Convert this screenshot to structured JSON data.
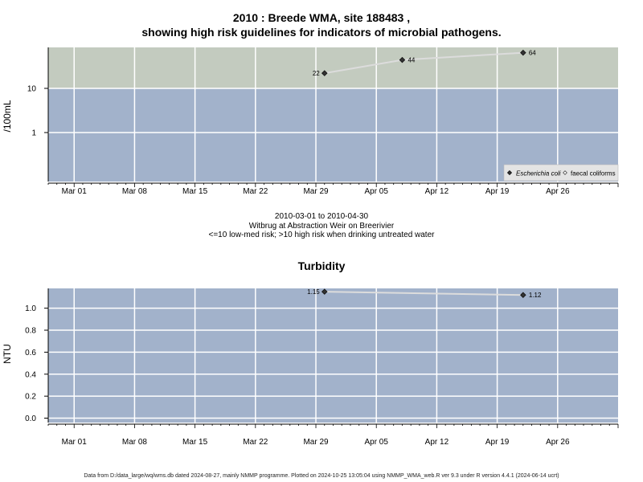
{
  "chart_data": [
    {
      "type": "line",
      "title_line1": "2010 : Breede WMA, site 188483 ,",
      "title_line2": "showing high risk guidelines for indicators of microbial pathogens.",
      "ylabel": "/100mL",
      "y_scale": "log",
      "y_ticks": [
        "1",
        "10"
      ],
      "x_ticks": [
        "Mar 01",
        "Mar 08",
        "Mar 15",
        "Mar 22",
        "Mar 29",
        "Apr 05",
        "Apr 12",
        "Apr 19",
        "Apr 26"
      ],
      "x_range": [
        "2010-02-26",
        "2010-05-03"
      ],
      "threshold": 10,
      "colors": {
        "high_risk": "#c3cbbf",
        "low_risk": "#a2b2cb",
        "line": "#dcdcdc",
        "marker": "#333333"
      },
      "series": [
        {
          "name": "Escherichia coli",
          "marker": "filled-diamond",
          "points": [
            {
              "x": "2010-03-30",
              "y": 22,
              "label": "22",
              "label_side": "left"
            },
            {
              "x": "2010-04-08",
              "y": 44,
              "label": "44",
              "label_side": "right"
            },
            {
              "x": "2010-04-22",
              "y": 64,
              "label": "64",
              "label_side": "right"
            }
          ]
        },
        {
          "name": "faecal coliforms",
          "marker": "open-diamond",
          "points": []
        }
      ],
      "legend_position": "bottom-right",
      "grid": true,
      "caption_lines": [
        "2010-03-01 to 2010-04-30",
        "Witbrug at Abstraction Weir on Breerivier",
        "<=10 low-med risk; >10 high risk when drinking untreated water"
      ]
    },
    {
      "type": "line",
      "title": "Turbidity",
      "ylabel": "NTU",
      "ylim": [
        -0.04,
        1.18
      ],
      "y_ticks": [
        "0.0",
        "0.2",
        "0.4",
        "0.6",
        "0.8",
        "1.0"
      ],
      "x_ticks": [
        "Mar 01",
        "Mar 08",
        "Mar 15",
        "Mar 22",
        "Mar 29",
        "Apr 05",
        "Apr 12",
        "Apr 19",
        "Apr 26"
      ],
      "x_range": [
        "2010-02-26",
        "2010-05-03"
      ],
      "colors": {
        "background": "#a2b2cb",
        "line": "#dcdcdc",
        "marker": "#333333"
      },
      "series": [
        {
          "name": "Turbidity",
          "points": [
            {
              "x": "2010-03-30",
              "y": 1.15,
              "label": "1.15",
              "label_side": "left"
            },
            {
              "x": "2010-04-22",
              "y": 1.12,
              "label": "1.12",
              "label_side": "right"
            }
          ]
        }
      ],
      "grid": true
    }
  ],
  "footer": "Data from D:/data_large/wq/wms.db dated 2024-08-27, mainly NMMP programme. Plotted on 2024-10-25 13:05:04 using NMMP_WMA_web.R ver 9.3 under R version 4.4.1 (2024-06-14 ucrt)"
}
